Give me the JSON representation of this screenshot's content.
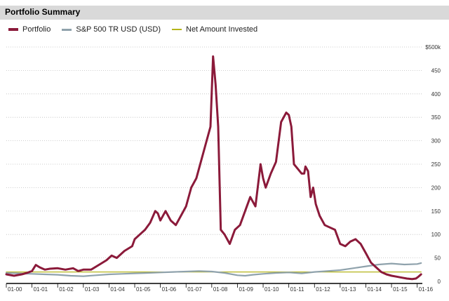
{
  "title": "Portfolio Summary",
  "colors": {
    "portfolio": "#8b1a3a",
    "sp500": "#8fa2ac",
    "net": "#b5b51a",
    "grid": "#bdbdbd",
    "titlebar": "#d9d9d9"
  },
  "chart_data": {
    "type": "line",
    "title": "Portfolio Summary",
    "xlabel": "",
    "ylabel": "",
    "xlim": [
      2000.0,
      2016.2
    ],
    "ylim": [
      0,
      500
    ],
    "y_ticks": [
      0,
      50,
      100,
      150,
      200,
      250,
      300,
      350,
      400,
      450,
      500
    ],
    "y_tick_labels": [
      "0",
      "50",
      "100",
      "150",
      "200",
      "250",
      "300",
      "350",
      "400",
      "450",
      "$500k"
    ],
    "x_tick_labels": [
      "01-00",
      "01-01",
      "01-02",
      "01-03",
      "01-04",
      "01-05",
      "01-06",
      "01-07",
      "01-08",
      "01-09",
      "01-10",
      "01-11",
      "01-12",
      "01-13",
      "01-14",
      "01-15",
      "01-16"
    ],
    "legend": [
      "Portfolio",
      "S&P 500 TR USD (USD)",
      "Net Amount Invested"
    ],
    "series": [
      {
        "name": "Portfolio",
        "x": [
          2000.0,
          2000.3,
          2000.6,
          2000.8,
          2001.0,
          2001.15,
          2001.3,
          2001.5,
          2001.7,
          2002.0,
          2002.3,
          2002.6,
          2002.8,
          2003.0,
          2003.3,
          2003.6,
          2003.9,
          2004.1,
          2004.3,
          2004.6,
          2004.9,
          2005.0,
          2005.2,
          2005.4,
          2005.6,
          2005.8,
          2005.9,
          2006.0,
          2006.2,
          2006.4,
          2006.6,
          2006.8,
          2007.0,
          2007.2,
          2007.4,
          2007.6,
          2007.8,
          2007.95,
          2008.05,
          2008.15,
          2008.25,
          2008.35,
          2008.5,
          2008.7,
          2008.9,
          2009.1,
          2009.3,
          2009.5,
          2009.7,
          2009.9,
          2010.0,
          2010.1,
          2010.3,
          2010.5,
          2010.7,
          2010.9,
          2011.0,
          2011.1,
          2011.2,
          2011.35,
          2011.5,
          2011.6,
          2011.65,
          2011.75,
          2011.85,
          2011.95,
          2012.05,
          2012.2,
          2012.4,
          2012.6,
          2012.8,
          2013.0,
          2013.2,
          2013.4,
          2013.6,
          2013.8,
          2014.0,
          2014.2,
          2014.4,
          2014.6,
          2014.8,
          2015.0,
          2015.2,
          2015.4,
          2015.6,
          2015.8,
          2015.95,
          2016.05,
          2016.15
        ],
        "values": [
          15,
          12,
          15,
          18,
          22,
          35,
          30,
          25,
          27,
          28,
          25,
          28,
          22,
          25,
          25,
          35,
          45,
          55,
          50,
          65,
          75,
          90,
          100,
          110,
          125,
          150,
          145,
          130,
          150,
          130,
          120,
          140,
          160,
          200,
          220,
          260,
          300,
          330,
          480,
          420,
          330,
          110,
          100,
          80,
          110,
          120,
          150,
          180,
          160,
          250,
          220,
          200,
          230,
          255,
          340,
          360,
          355,
          330,
          250,
          240,
          230,
          230,
          245,
          235,
          180,
          200,
          165,
          140,
          120,
          115,
          110,
          80,
          75,
          85,
          90,
          80,
          60,
          40,
          30,
          20,
          15,
          12,
          10,
          8,
          6,
          5,
          6,
          10,
          15
        ],
        "color": "#8b1a3a"
      },
      {
        "name": "S&P 500 TR USD (USD)",
        "x": [
          2000.0,
          2000.5,
          2001.0,
          2001.5,
          2002.0,
          2002.5,
          2003.0,
          2003.5,
          2004.0,
          2004.5,
          2005.0,
          2005.5,
          2006.0,
          2006.5,
          2007.0,
          2007.5,
          2008.0,
          2008.5,
          2009.0,
          2009.3,
          2009.6,
          2010.0,
          2010.5,
          2011.0,
          2011.5,
          2012.0,
          2012.5,
          2013.0,
          2013.5,
          2014.0,
          2014.5,
          2015.0,
          2015.5,
          2016.0,
          2016.15
        ],
        "values": [
          18,
          17,
          16,
          15,
          14,
          12,
          11,
          13,
          15,
          16,
          17,
          18,
          19,
          20,
          21,
          22,
          21,
          18,
          13,
          12,
          14,
          16,
          18,
          19,
          17,
          20,
          22,
          24,
          28,
          32,
          36,
          38,
          36,
          37,
          39
        ],
        "color": "#8fa2ac"
      },
      {
        "name": "Net Amount Invested",
        "x": [
          2000.0,
          2016.15
        ],
        "values": [
          20,
          20
        ],
        "color": "#b5b51a"
      }
    ]
  }
}
